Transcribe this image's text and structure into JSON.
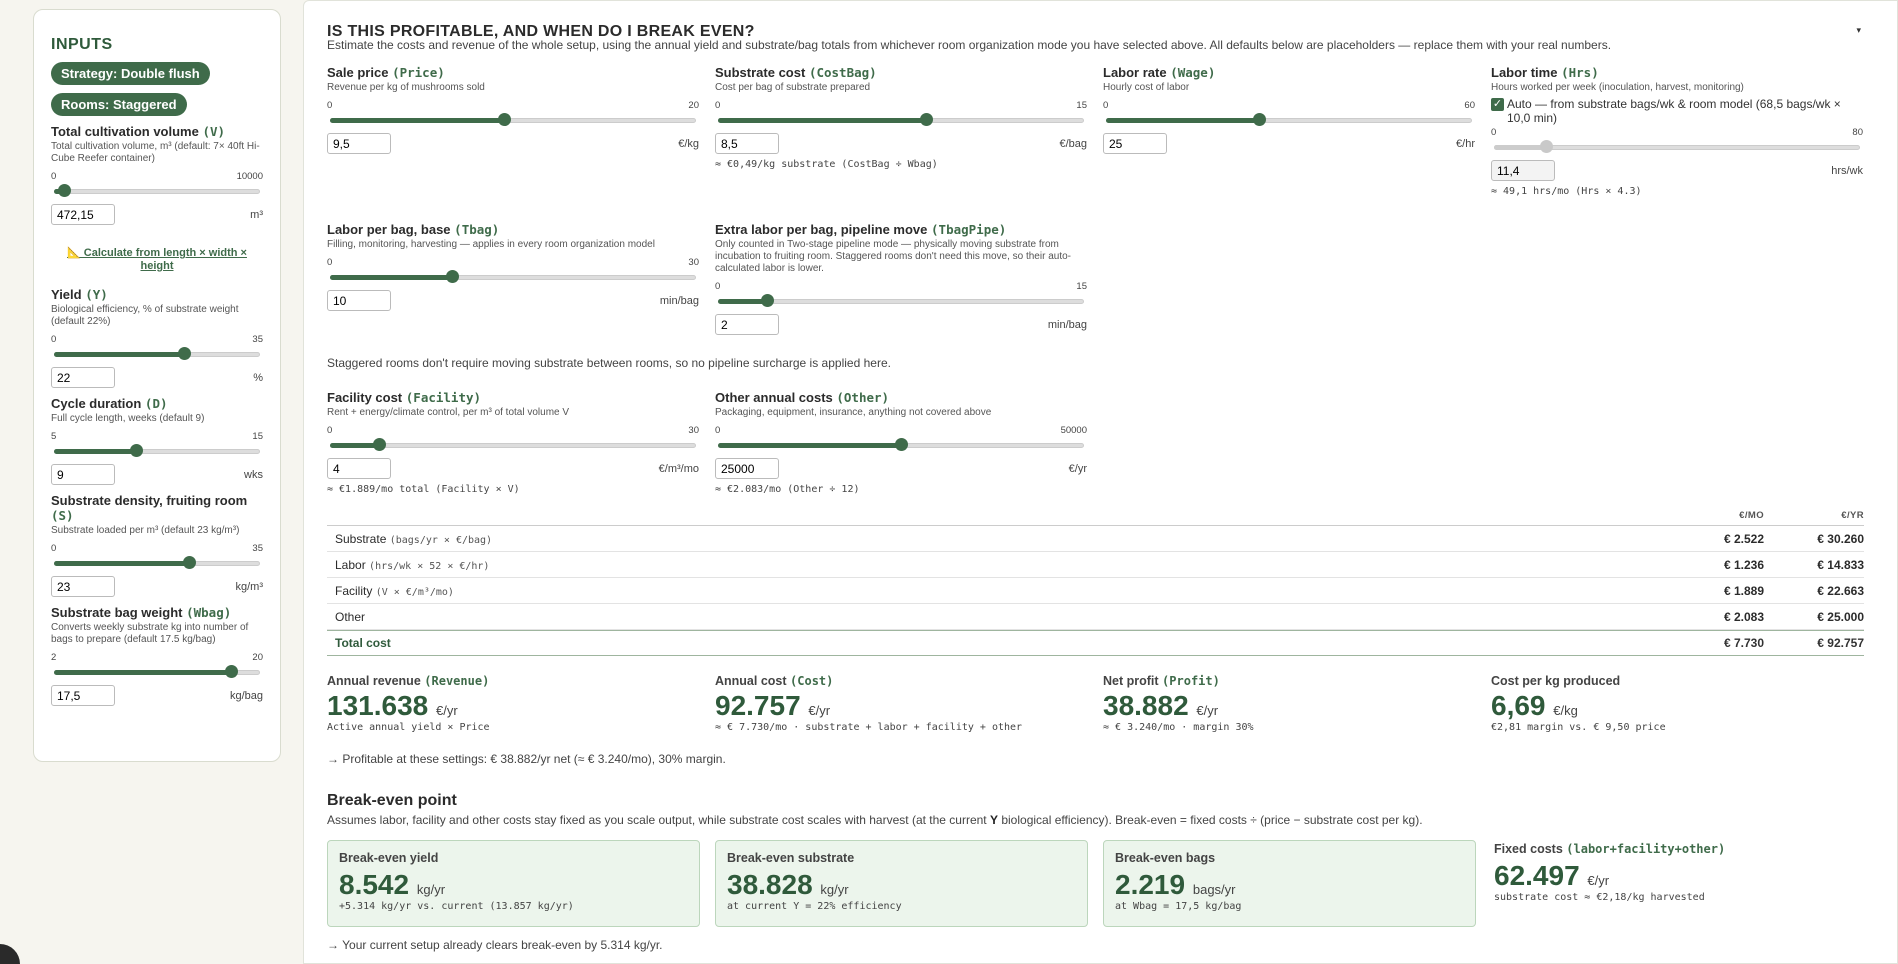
{
  "sidebar": {
    "heading": "INPUTS",
    "strategy_pill": "Strategy: Double flush",
    "rooms_pill": "Rooms: Staggered",
    "volume": {
      "label": "Total cultivation volume",
      "var": "(V)",
      "desc": "Total cultivation volume, m³ (default: 7× 40ft Hi-Cube Reefer container)",
      "min": "0",
      "max": "10000",
      "value": "472,15",
      "unit": "m³",
      "pct": 4.7
    },
    "calc_link": "📐 Calculate from length × width × height",
    "yield": {
      "label": "Yield",
      "var": "(Y)",
      "desc": "Biological efficiency, % of substrate weight (default 22%)",
      "min": "0",
      "max": "35",
      "value": "22",
      "unit": "%",
      "pct": 62.9
    },
    "cycle": {
      "label": "Cycle duration",
      "var": "(D)",
      "desc": "Full cycle length, weeks (default 9)",
      "min": "5",
      "max": "15",
      "value": "9",
      "unit": "wks",
      "pct": 40
    },
    "density": {
      "label": "Substrate density, fruiting room",
      "var": "(S)",
      "desc": "Substrate loaded per m³ (default 23 kg/m³)",
      "min": "0",
      "max": "35",
      "value": "23",
      "unit": "kg/m³",
      "pct": 65.7
    },
    "bagweight": {
      "label": "Substrate bag weight",
      "var": "(Wbag)",
      "desc": "Converts weekly substrate kg into number of bags to prepare (default 17.5 kg/bag)",
      "min": "2",
      "max": "20",
      "value": "17,5",
      "unit": "kg/bag",
      "pct": 86.1
    }
  },
  "main": {
    "title": "IS THIS PROFITABLE, AND WHEN DO I BREAK EVEN?",
    "collapse_glyph": "▾",
    "intro": "Estimate the costs and revenue of the whole setup, using the annual yield and substrate/bag totals from whichever room organization mode you have selected above. All defaults below are placeholders — replace them with your real numbers.",
    "price": {
      "label": "Sale price",
      "var": "(Price)",
      "desc": "Revenue per kg of mushrooms sold",
      "min": "0",
      "max": "20",
      "value": "9,5",
      "unit": "€/kg",
      "pct": 47.5
    },
    "costbag": {
      "label": "Substrate cost",
      "var": "(CostBag)",
      "desc": "Cost per bag of substrate prepared",
      "min": "0",
      "max": "15",
      "value": "8,5",
      "unit": "€/bag",
      "pct": 56.7,
      "note": "≈ €0,49/kg substrate (CostBag ÷ Wbag)"
    },
    "wage": {
      "label": "Labor rate",
      "var": "(Wage)",
      "desc": "Hourly cost of labor",
      "min": "0",
      "max": "60",
      "value": "25",
      "unit": "€/hr",
      "pct": 41.7
    },
    "hrs": {
      "label": "Labor time",
      "var": "(Hrs)",
      "desc": "Hours worked per week (inoculation, harvest, monitoring)",
      "check": "Auto — from substrate bags/wk & room model (68,5 bags/wk × 10,0 min)",
      "min": "0",
      "max": "80",
      "value": "11,4",
      "unit": "hrs/wk",
      "pct": 14.3,
      "note": "≈ 49,1 hrs/mo (Hrs × 4.3)"
    },
    "tbag": {
      "label": "Labor per bag, base",
      "var": "(Tbag)",
      "desc": "Filling, monitoring, harvesting — applies in every room organization model",
      "min": "0",
      "max": "30",
      "value": "10",
      "unit": "min/bag",
      "pct": 33.3
    },
    "tbagpipe": {
      "label": "Extra labor per bag, pipeline move",
      "var": "(TbagPipe)",
      "desc": "Only counted in Two-stage pipeline mode — physically moving substrate from incubation to fruiting room. Staggered rooms don't need this move, so their auto-calculated labor is lower.",
      "min": "0",
      "max": "15",
      "value": "2",
      "unit": "min/bag",
      "pct": 13.3
    },
    "pipe_note": "Staggered rooms don't require moving substrate between rooms, so no pipeline surcharge is applied here.",
    "facility": {
      "label": "Facility cost",
      "var": "(Facility)",
      "desc": "Rent + energy/climate control, per m³ of total volume V",
      "min": "0",
      "max": "30",
      "value": "4",
      "unit": "€/m³/mo",
      "pct": 13.3,
      "note": "≈ €1.889/mo total (Facility × V)"
    },
    "other": {
      "label": "Other annual costs",
      "var": "(Other)",
      "desc": "Packaging, equipment, insurance, anything not covered above",
      "min": "0",
      "max": "50000",
      "value": "25000",
      "unit": "€/yr",
      "pct": 50,
      "note": "≈ €2.083/mo (Other ÷ 12)"
    },
    "table": {
      "col_mo": "€/MO",
      "col_yr": "€/YR",
      "rows": [
        {
          "name": "Substrate",
          "formula": "(bags/yr × €/bag)",
          "mo": "€ 2.522",
          "yr": "€ 30.260"
        },
        {
          "name": "Labor",
          "formula": "(hrs/wk × 52 × €/hr)",
          "mo": "€ 1.236",
          "yr": "€ 14.833"
        },
        {
          "name": "Facility",
          "formula": "(V × €/m³/mo)",
          "mo": "€ 1.889",
          "yr": "€ 22.663"
        },
        {
          "name": "Other",
          "formula": "",
          "mo": "€ 2.083",
          "yr": "€ 25.000"
        }
      ],
      "total": {
        "name": "Total cost",
        "mo": "€ 7.730",
        "yr": "€ 92.757"
      }
    },
    "kpis": [
      {
        "label": "Annual revenue",
        "var": "(Revenue)",
        "value": "131.638",
        "unit": "€/yr",
        "sub": "Active annual yield × Price"
      },
      {
        "label": "Annual cost",
        "var": "(Cost)",
        "value": "92.757",
        "unit": "€/yr",
        "sub": "≈ € 7.730/mo · substrate + labor + facility + other"
      },
      {
        "label": "Net profit",
        "var": "(Profit)",
        "value": "38.882",
        "unit": "€/yr",
        "sub": "≈ € 3.240/mo · margin 30%"
      },
      {
        "label": "Cost per kg produced",
        "var": "",
        "value": "6,69",
        "unit": "€/kg",
        "sub": "€2,81 margin vs. € 9,50 price"
      }
    ],
    "verdict": "→ Profitable at these settings: € 38.882/yr net (≈ € 3.240/mo), 30% margin.",
    "breakeven": {
      "title": "Break-even point",
      "desc_before": "Assumes labor, facility and other costs stay fixed as you scale output, while substrate cost scales with harvest (at the current ",
      "desc_bold": "Y",
      "desc_after": " biological efficiency). Break-even = fixed costs ÷ (price − substrate cost per kg).",
      "cards": [
        {
          "label": "Break-even yield",
          "value": "8.542",
          "unit": "kg/yr",
          "sub": "+5.314 kg/yr vs. current (13.857 kg/yr)"
        },
        {
          "label": "Break-even substrate",
          "value": "38.828",
          "unit": "kg/yr",
          "sub": "at current Y = 22% efficiency"
        },
        {
          "label": "Break-even bags",
          "value": "2.219",
          "unit": "bags/yr",
          "sub": "at Wbag = 17,5 kg/bag"
        }
      ],
      "fixed": {
        "label": "Fixed costs",
        "var": "(labor+facility+other)",
        "value": "62.497",
        "unit": "€/yr",
        "sub": "substrate cost ≈ €2,18/kg harvested"
      },
      "bottom": "→ Your current setup already clears break-even by 5.314 kg/yr."
    }
  },
  "colors": {
    "accent": "#3f6b4a",
    "card_bg": "#ecf5ec"
  }
}
